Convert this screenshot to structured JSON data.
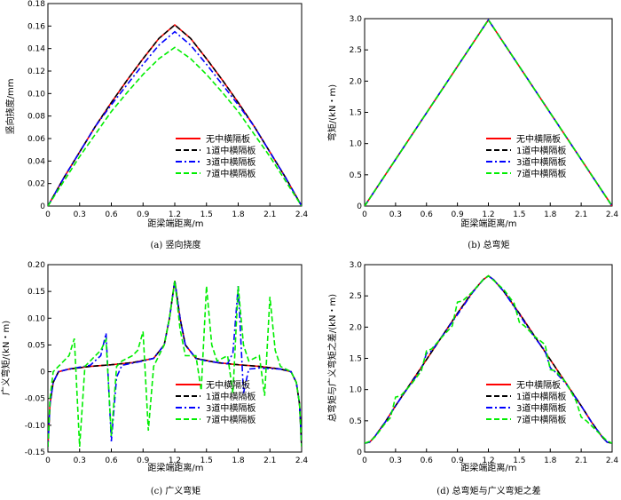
{
  "chart_data": [
    {
      "type": "line",
      "panel": "a",
      "caption": "(a)  竖向挠度",
      "xlabel": "距梁端距离/m",
      "ylabel": "竖向挠度/mm",
      "xlim": [
        0,
        2.4
      ],
      "ylim": [
        0,
        0.18
      ],
      "xticks": [
        "0",
        "0.3",
        "0.6",
        "0.9",
        "1.2",
        "1.5",
        "1.8",
        "2.1",
        "2.4"
      ],
      "yticks": [
        "0",
        "0.02",
        "0.04",
        "0.06",
        "0.08",
        "0.10",
        "0.12",
        "0.14",
        "0.16",
        "0.18"
      ],
      "legend_position": "bottom-right",
      "series": [
        {
          "name": "无中横隔板",
          "color": "#ff0000",
          "dash": "solid",
          "x": [
            0,
            0.15,
            0.3,
            0.45,
            0.6,
            0.75,
            0.9,
            1.05,
            1.2,
            1.35,
            1.5,
            1.65,
            1.8,
            1.95,
            2.1,
            2.25,
            2.4
          ],
          "y": [
            0,
            0.025,
            0.048,
            0.071,
            0.092,
            0.112,
            0.131,
            0.149,
            0.161,
            0.149,
            0.131,
            0.112,
            0.092,
            0.071,
            0.048,
            0.025,
            0
          ]
        },
        {
          "name": "1道中横隔板",
          "color": "#000000",
          "dash": "dash",
          "x": [
            0,
            0.15,
            0.3,
            0.45,
            0.6,
            0.75,
            0.9,
            1.05,
            1.2,
            1.35,
            1.5,
            1.65,
            1.8,
            1.95,
            2.1,
            2.25,
            2.4
          ],
          "y": [
            0,
            0.025,
            0.048,
            0.071,
            0.092,
            0.112,
            0.131,
            0.149,
            0.161,
            0.149,
            0.131,
            0.112,
            0.092,
            0.071,
            0.048,
            0.025,
            0
          ]
        },
        {
          "name": "3道中横隔板",
          "color": "#0000ff",
          "dash": "dashdot",
          "x": [
            0,
            0.15,
            0.3,
            0.45,
            0.6,
            0.75,
            0.9,
            1.05,
            1.2,
            1.35,
            1.5,
            1.65,
            1.8,
            1.95,
            2.1,
            2.25,
            2.4
          ],
          "y": [
            0,
            0.025,
            0.048,
            0.071,
            0.09,
            0.108,
            0.126,
            0.143,
            0.155,
            0.143,
            0.126,
            0.108,
            0.09,
            0.071,
            0.048,
            0.025,
            0
          ]
        },
        {
          "name": "7道中横隔板",
          "color": "#00ee00",
          "dash": "dash",
          "x": [
            0,
            0.15,
            0.3,
            0.45,
            0.6,
            0.75,
            0.9,
            1.05,
            1.2,
            1.35,
            1.5,
            1.65,
            1.8,
            1.95,
            2.1,
            2.25,
            2.4
          ],
          "y": [
            0,
            0.022,
            0.044,
            0.064,
            0.084,
            0.101,
            0.117,
            0.131,
            0.141,
            0.131,
            0.117,
            0.101,
            0.084,
            0.064,
            0.044,
            0.022,
            0
          ]
        }
      ]
    },
    {
      "type": "line",
      "panel": "b",
      "caption": "(b)  总弯矩",
      "xlabel": "距梁端距离/m",
      "ylabel": "弯矩/(kN・m)",
      "xlim": [
        0,
        2.4
      ],
      "ylim": [
        0,
        3.0
      ],
      "xticks": [
        "0",
        "0.3",
        "0.6",
        "0.9",
        "1.2",
        "1.5",
        "1.8",
        "2.1",
        "2.4"
      ],
      "yticks": [
        "0",
        "0.5",
        "1.0",
        "1.5",
        "2.0",
        "2.5",
        "3.0"
      ],
      "legend_position": "bottom-right",
      "series": [
        {
          "name": "无中横隔板",
          "color": "#ff0000",
          "dash": "solid",
          "x": [
            0,
            1.2,
            2.4
          ],
          "y": [
            0,
            2.98,
            0
          ]
        },
        {
          "name": "1道中横隔板",
          "color": "#000000",
          "dash": "dash",
          "x": [
            0,
            1.2,
            2.4
          ],
          "y": [
            0,
            2.98,
            0
          ]
        },
        {
          "name": "3道中横隔板",
          "color": "#0000ff",
          "dash": "dashdot",
          "x": [
            0,
            1.2,
            2.4
          ],
          "y": [
            0,
            2.98,
            0
          ]
        },
        {
          "name": "7道中横隔板",
          "color": "#00ee00",
          "dash": "dash",
          "x": [
            0,
            1.2,
            2.4
          ],
          "y": [
            0,
            2.98,
            0
          ]
        }
      ]
    },
    {
      "type": "line",
      "panel": "c",
      "caption": "(c)  广义弯矩",
      "xlabel": "距梁端距离/m",
      "ylabel": "广义弯矩/(kN・m)",
      "xlim": [
        0,
        2.4
      ],
      "ylim": [
        -0.15,
        0.2
      ],
      "xticks": [
        "0",
        "0.3",
        "0.6",
        "0.9",
        "1.2",
        "1.5",
        "1.8",
        "2.1",
        "2.4"
      ],
      "yticks": [
        "-0.15",
        "-0.10",
        "-0.05",
        "0",
        "0.05",
        "0.10",
        "0.15",
        "0.20"
      ],
      "legend_position": "bottom-right",
      "series": [
        {
          "name": "无中横隔板",
          "color": "#ff0000",
          "dash": "solid",
          "x": [
            0,
            0.02,
            0.05,
            0.1,
            0.2,
            0.4,
            0.6,
            0.8,
            1.0,
            1.1,
            1.15,
            1.2,
            1.25,
            1.3,
            1.4,
            1.6,
            1.8,
            2.0,
            2.2,
            2.3,
            2.35,
            2.38,
            2.4
          ],
          "y": [
            -0.14,
            -0.06,
            -0.02,
            0.0,
            0.005,
            0.01,
            0.013,
            0.017,
            0.025,
            0.05,
            0.1,
            0.17,
            0.1,
            0.05,
            0.025,
            0.017,
            0.013,
            0.01,
            0.005,
            0.0,
            -0.02,
            -0.06,
            -0.14
          ]
        },
        {
          "name": "1道中横隔板",
          "color": "#000000",
          "dash": "dash",
          "x": [
            0,
            0.02,
            0.05,
            0.1,
            0.2,
            0.4,
            0.6,
            0.8,
            1.0,
            1.1,
            1.15,
            1.2,
            1.25,
            1.3,
            1.4,
            1.6,
            1.8,
            2.0,
            2.2,
            2.3,
            2.35,
            2.38,
            2.4
          ],
          "y": [
            -0.14,
            -0.06,
            -0.02,
            0.0,
            0.005,
            0.01,
            0.013,
            0.017,
            0.025,
            0.05,
            0.1,
            0.17,
            0.1,
            0.05,
            0.025,
            0.017,
            0.013,
            0.01,
            0.005,
            0.0,
            -0.02,
            -0.06,
            -0.14
          ]
        },
        {
          "name": "3道中横隔板",
          "color": "#0000ff",
          "dash": "dashdot",
          "x": [
            0,
            0.02,
            0.05,
            0.1,
            0.2,
            0.4,
            0.5,
            0.55,
            0.6,
            0.65,
            0.7,
            0.9,
            1.0,
            1.1,
            1.15,
            1.2,
            1.25,
            1.3,
            1.4,
            1.5,
            1.7,
            1.75,
            1.8,
            1.85,
            1.9,
            2.0,
            2.2,
            2.3,
            2.35,
            2.38,
            2.4
          ],
          "y": [
            -0.14,
            -0.06,
            -0.02,
            0.0,
            0.005,
            0.012,
            0.03,
            0.072,
            -0.13,
            -0.01,
            0.012,
            0.02,
            0.025,
            0.05,
            0.1,
            0.17,
            0.1,
            0.05,
            0.025,
            0.02,
            0.015,
            0.035,
            0.16,
            -0.04,
            0.005,
            0.007,
            0.005,
            0.0,
            -0.02,
            -0.06,
            -0.14
          ]
        },
        {
          "name": "7道中横隔板",
          "color": "#00ee00",
          "dash": "dash",
          "x": [
            0,
            0.02,
            0.05,
            0.1,
            0.2,
            0.25,
            0.3,
            0.35,
            0.4,
            0.45,
            0.5,
            0.55,
            0.6,
            0.65,
            0.7,
            0.8,
            0.85,
            0.9,
            0.95,
            1.0,
            1.1,
            1.15,
            1.2,
            1.25,
            1.3,
            1.4,
            1.45,
            1.5,
            1.55,
            1.6,
            1.7,
            1.75,
            1.8,
            1.85,
            1.9,
            2.0,
            2.05,
            2.1,
            2.15,
            2.2,
            2.3,
            2.35,
            2.38,
            2.4
          ],
          "y": [
            -0.14,
            -0.05,
            0.0,
            0.01,
            0.03,
            0.062,
            -0.14,
            0.01,
            0.02,
            0.03,
            0.04,
            0.06,
            -0.12,
            0.01,
            0.02,
            0.03,
            0.04,
            0.075,
            -0.11,
            0.01,
            0.05,
            0.1,
            0.17,
            0.08,
            0.03,
            0.03,
            -0.035,
            0.16,
            0.05,
            0.02,
            0.03,
            -0.04,
            0.16,
            0.05,
            0.02,
            0.03,
            -0.045,
            0.14,
            0.04,
            0.01,
            0.0,
            -0.02,
            -0.06,
            -0.14
          ]
        }
      ]
    },
    {
      "type": "line",
      "panel": "d",
      "caption": "(d)  总弯矩与广义弯矩之差",
      "xlabel": "距梁端距离/m",
      "ylabel": "总弯矩与广义弯矩之差/(kN・m)",
      "xlim": [
        0,
        2.4
      ],
      "ylim": [
        0,
        3.0
      ],
      "xticks": [
        "0",
        "0.3",
        "0.6",
        "0.9",
        "1.2",
        "1.5",
        "1.8",
        "2.1",
        "2.4"
      ],
      "yticks": [
        "0",
        "0.5",
        "1.0",
        "1.5",
        "2.0",
        "2.5",
        "3.0"
      ],
      "legend_position": "bottom-right",
      "series": [
        {
          "name": "无中横隔板",
          "color": "#ff0000",
          "dash": "solid",
          "x": [
            0,
            0.05,
            0.1,
            0.2,
            0.3,
            0.45,
            0.6,
            0.75,
            0.9,
            1.05,
            1.15,
            1.2,
            1.25,
            1.35,
            1.5,
            1.65,
            1.8,
            1.95,
            2.1,
            2.2,
            2.3,
            2.35,
            2.4
          ],
          "y": [
            0.14,
            0.16,
            0.25,
            0.48,
            0.74,
            1.11,
            1.48,
            1.85,
            2.22,
            2.57,
            2.76,
            2.82,
            2.76,
            2.57,
            2.22,
            1.85,
            1.48,
            1.11,
            0.74,
            0.48,
            0.25,
            0.16,
            0.14
          ]
        },
        {
          "name": "1道中横隔板",
          "color": "#000000",
          "dash": "dash",
          "x": [
            0,
            0.05,
            0.1,
            0.2,
            0.3,
            0.45,
            0.6,
            0.75,
            0.9,
            1.05,
            1.15,
            1.2,
            1.25,
            1.35,
            1.5,
            1.65,
            1.8,
            1.95,
            2.1,
            2.2,
            2.3,
            2.35,
            2.4
          ],
          "y": [
            0.14,
            0.16,
            0.25,
            0.48,
            0.74,
            1.11,
            1.48,
            1.85,
            2.22,
            2.57,
            2.76,
            2.82,
            2.76,
            2.57,
            2.22,
            1.85,
            1.48,
            1.11,
            0.74,
            0.48,
            0.25,
            0.16,
            0.14
          ]
        },
        {
          "name": "3道中横隔板",
          "color": "#0000ff",
          "dash": "dashdot",
          "x": [
            0,
            0.05,
            0.1,
            0.2,
            0.3,
            0.45,
            0.55,
            0.6,
            0.65,
            0.75,
            0.9,
            1.05,
            1.15,
            1.2,
            1.25,
            1.35,
            1.5,
            1.65,
            1.75,
            1.8,
            1.85,
            1.95,
            2.1,
            2.2,
            2.3,
            2.35,
            2.4
          ],
          "y": [
            0.14,
            0.16,
            0.25,
            0.48,
            0.74,
            1.1,
            1.32,
            1.58,
            1.62,
            1.85,
            2.2,
            2.56,
            2.76,
            2.82,
            2.76,
            2.57,
            2.2,
            1.83,
            1.62,
            1.35,
            1.28,
            1.1,
            0.74,
            0.48,
            0.25,
            0.16,
            0.14
          ]
        },
        {
          "name": "7道中横隔板",
          "color": "#00ee00",
          "dash": "dash",
          "x": [
            0,
            0.05,
            0.1,
            0.2,
            0.25,
            0.3,
            0.35,
            0.45,
            0.55,
            0.6,
            0.65,
            0.75,
            0.85,
            0.9,
            0.95,
            1.05,
            1.15,
            1.2,
            1.25,
            1.35,
            1.45,
            1.5,
            1.55,
            1.65,
            1.75,
            1.8,
            1.85,
            1.95,
            2.05,
            2.1,
            2.15,
            2.25,
            2.35,
            2.4
          ],
          "y": [
            0.14,
            0.17,
            0.24,
            0.46,
            0.55,
            0.88,
            0.9,
            1.08,
            1.3,
            1.62,
            1.65,
            1.84,
            2.02,
            2.4,
            2.42,
            2.57,
            2.76,
            2.82,
            2.75,
            2.6,
            2.38,
            2.08,
            2.02,
            1.85,
            1.72,
            1.32,
            1.3,
            1.12,
            0.82,
            0.56,
            0.5,
            0.34,
            0.18,
            0.14
          ]
        }
      ]
    }
  ]
}
